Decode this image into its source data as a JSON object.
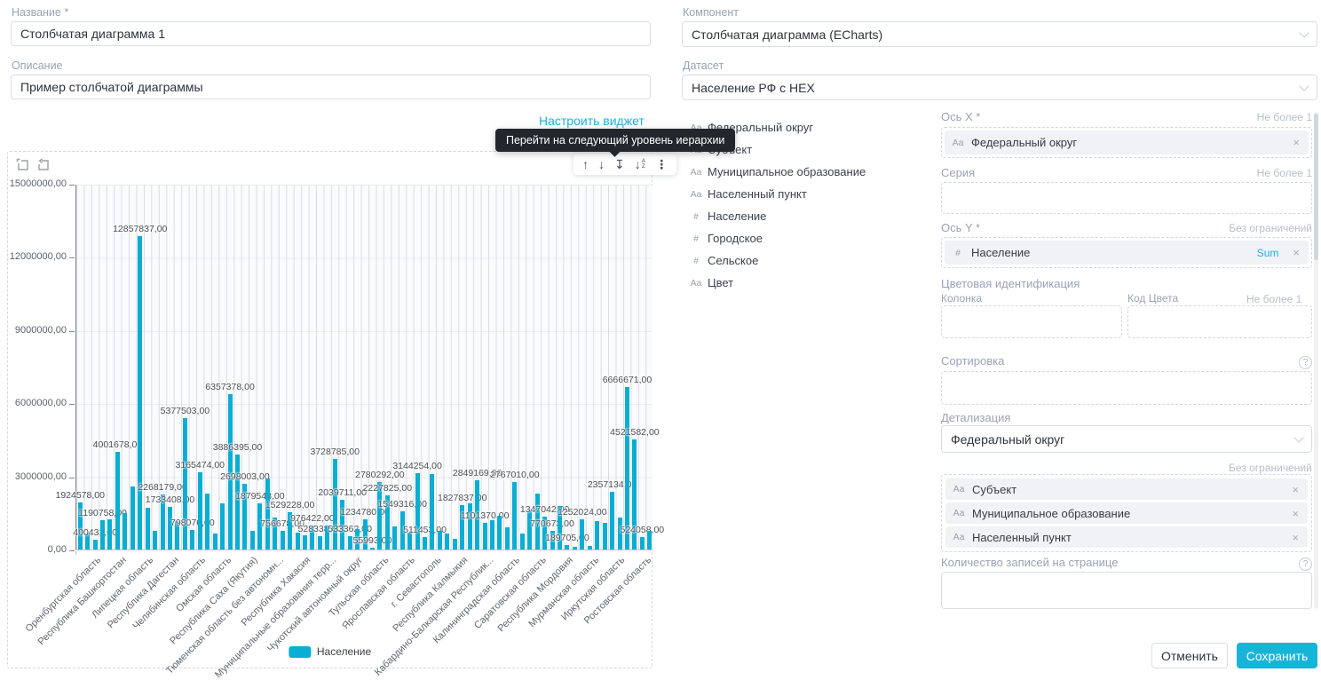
{
  "form": {
    "name_label": "Название *",
    "name_value": "Столбчатая диаграмма 1",
    "description_label": "Описание",
    "description_value": "Пример столбчатой диаграммы",
    "configure_widget_link": "Настроить виджет"
  },
  "component": {
    "label": "Компонент",
    "value": "Столбчатая диаграмма (ECharts)"
  },
  "dataset": {
    "label": "Датасет",
    "value": "Население РФ с HEX"
  },
  "fields": {
    "items": [
      {
        "type": "Aa",
        "label": "Федеральный округ"
      },
      {
        "type": "Aa",
        "label": "Субъект"
      },
      {
        "type": "Aa",
        "label": "Муниципальное образование"
      },
      {
        "type": "Aa",
        "label": "Населенный пункт"
      },
      {
        "type": "#",
        "label": "Население"
      },
      {
        "type": "#",
        "label": "Городское"
      },
      {
        "type": "#",
        "label": "Сельское"
      },
      {
        "type": "Aa",
        "label": "Цвет"
      }
    ]
  },
  "tooltip": {
    "text": "Перейти на следующий уровень иерархии"
  },
  "limits": {
    "max_one": "Не более 1",
    "unlimited": "Без ограничений"
  },
  "panel": {
    "x_axis": {
      "label": "Ось X *",
      "chip": {
        "type": "Aa",
        "label": "Федеральный округ"
      }
    },
    "series": {
      "label": "Серия"
    },
    "y_axis": {
      "label": "Ось Y *",
      "chip": {
        "type": "#",
        "label": "Население",
        "aggregation": "Sum"
      }
    },
    "color_ident": {
      "label": "Цветовая идентификация",
      "column_label": "Колонка",
      "color_code_label": "Код Цвета"
    },
    "sorting": {
      "label": "Сортировка"
    },
    "drill": {
      "label": "Детализация",
      "value": "Федеральный округ",
      "fields": [
        {
          "type": "Aa",
          "label": "Субъект"
        },
        {
          "type": "Aa",
          "label": "Муниципальное образование"
        },
        {
          "type": "Aa",
          "label": "Населенный пункт"
        }
      ]
    },
    "page_size": {
      "label": "Количество записей на странице",
      "value": ""
    }
  },
  "actions": {
    "cancel": "Отменить",
    "save": "Сохранить"
  },
  "icons": {
    "remove": "×",
    "chevron": "∨",
    "arrow_up": "↑",
    "arrow_down": "↓",
    "arrow_down_bar": "↧",
    "sort_a": "A",
    "sort_z": "Z",
    "kebab": "⋮",
    "help": "?"
  },
  "colors": {
    "accent": "#17b4d9",
    "bar": "#09aed2",
    "tooltip_bg": "#22262d"
  },
  "chart_data": {
    "type": "bar",
    "title": "",
    "series_name": "Население",
    "xlabel": "",
    "ylabel": "",
    "ylim": [
      0,
      15000000
    ],
    "grid": true,
    "legend_position": "bottom",
    "y_ticks": [
      "15000000,00",
      "12000000,00",
      "9000000,00",
      "6000000,00",
      "3000000,00",
      "0,00"
    ],
    "x_tick_labels": [
      "Оренбургская область",
      "Республика Башкортостан",
      "Липецкая область",
      "Республика Дагестан",
      "Челябинская область",
      "Омская область",
      "Республика Саха (Якутия)",
      "Тюменская область без автономн...",
      "Республика Хакасия",
      "Муниципальные образования терр...",
      "Чукотский автономный округ",
      "Тульская область",
      "Ярославская область",
      "г. Севастополь",
      "Республика Калмыкия",
      "Кабардино-Балкарская Республик...",
      "Калининградская область",
      "Саратовская область",
      "Республика Мордовия",
      "Мурманская область",
      "Иркутская область",
      "Ростовская область"
    ],
    "bars": [
      {
        "v": 1924578,
        "label": "1924578,00"
      },
      {
        "v": 650000
      },
      {
        "v": 400431,
        "label": "400431,00"
      },
      {
        "v": 1190758,
        "label": "1190758,00"
      },
      {
        "v": 1250000
      },
      {
        "v": 4001678,
        "label": "4001678,00"
      },
      {
        "v": 1500000
      },
      {
        "v": 2600000
      },
      {
        "v": 12857837,
        "label": "12857837,00"
      },
      {
        "v": 1700000
      },
      {
        "v": 750000
      },
      {
        "v": 2268179,
        "label": "2268179,00"
      },
      {
        "v": 1733408,
        "label": "1733408,00"
      },
      {
        "v": 1150000
      },
      {
        "v": 5377503,
        "label": "5377503,00"
      },
      {
        "v": 798076,
        "label": "798076,00"
      },
      {
        "v": 3165474,
        "label": "3165474,00"
      },
      {
        "v": 2300000
      },
      {
        "v": 650000
      },
      {
        "v": 1900000
      },
      {
        "v": 6357378,
        "label": "6357378,00"
      },
      {
        "v": 3886395,
        "label": "3886395,00"
      },
      {
        "v": 2698003,
        "label": "2698003,00"
      },
      {
        "v": 750000
      },
      {
        "v": 1879548,
        "label": "1879548,00"
      },
      {
        "v": 2900000
      },
      {
        "v": 1300000
      },
      {
        "v": 756678,
        "label": "756678,00"
      },
      {
        "v": 1529228,
        "label": "1529228,00"
      },
      {
        "v": 700000
      },
      {
        "v": 600000
      },
      {
        "v": 976422,
        "label": "976422,00"
      },
      {
        "v": 528338,
        "label": "528338,00"
      },
      {
        "v": 1000000
      },
      {
        "v": 3728785,
        "label": "3728785,00"
      },
      {
        "v": 2039711,
        "label": "2039711,00"
      },
      {
        "v": 533362,
        "label": "533362,00"
      },
      {
        "v": 850000
      },
      {
        "v": 1234780,
        "label": "1234780,00"
      },
      {
        "v": 55993,
        "label": "55993,00"
      },
      {
        "v": 2780292,
        "label": "2780292,00"
      },
      {
        "v": 2227825,
        "label": "2227825,00"
      },
      {
        "v": 950000
      },
      {
        "v": 1549316,
        "label": "1549316,00"
      },
      {
        "v": 700000
      },
      {
        "v": 3144254,
        "label": "3144254,00"
      },
      {
        "v": 511453,
        "label": "511453,00"
      },
      {
        "v": 3100000
      },
      {
        "v": 750000
      },
      {
        "v": 650000
      },
      {
        "v": 450000
      },
      {
        "v": 1827837,
        "label": "1827837,00"
      },
      {
        "v": 1900000
      },
      {
        "v": 2849169,
        "label": "2849169,00"
      },
      {
        "v": 1101370,
        "label": "1101370,00"
      },
      {
        "v": 1200000
      },
      {
        "v": 1400000
      },
      {
        "v": 900000
      },
      {
        "v": 2767010,
        "label": "2767010,00"
      },
      {
        "v": 650000
      },
      {
        "v": 1600000
      },
      {
        "v": 2300000
      },
      {
        "v": 1347042,
        "label": "1347042,00"
      },
      {
        "v": 770673,
        "label": "770673,00"
      },
      {
        "v": 1800000
      },
      {
        "v": 189705,
        "label": "189705,00"
      },
      {
        "v": 100000
      },
      {
        "v": 1252024,
        "label": "1252024,00"
      },
      {
        "v": 150000
      },
      {
        "v": 1150000
      },
      {
        "v": 1100000
      },
      {
        "v": 2357134,
        "label": "2357134,00"
      },
      {
        "v": 1300000
      },
      {
        "v": 6666671,
        "label": "6666671,00"
      },
      {
        "v": 4521582,
        "label": "4521582,00"
      },
      {
        "v": 524058,
        "label": "524058,00"
      },
      {
        "v": 750000
      }
    ]
  }
}
